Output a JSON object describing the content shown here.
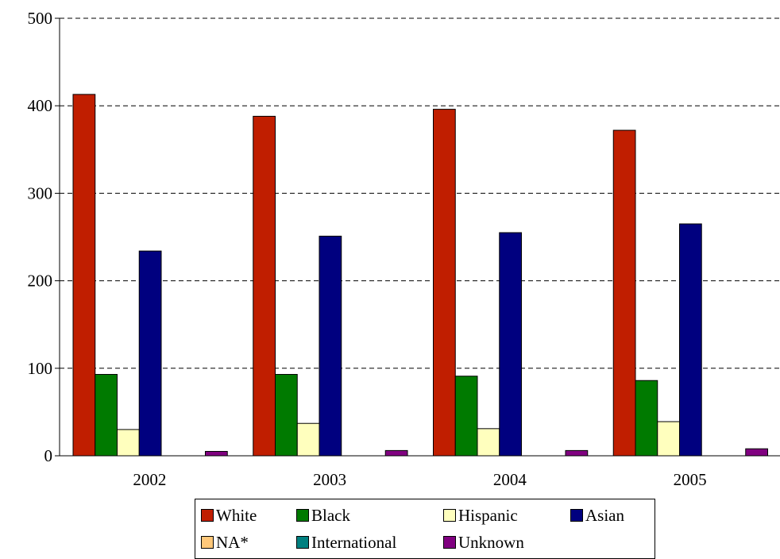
{
  "chart_data": {
    "type": "bar",
    "categories": [
      "2002",
      "2003",
      "2004",
      "2005"
    ],
    "series": [
      {
        "name": "White",
        "color": "#c01e00",
        "values": [
          413,
          388,
          396,
          372
        ]
      },
      {
        "name": "Black",
        "color": "#007a00",
        "values": [
          93,
          93,
          91,
          86
        ]
      },
      {
        "name": "Hispanic",
        "color": "#ffffbe",
        "values": [
          30,
          37,
          31,
          39
        ]
      },
      {
        "name": "Asian",
        "color": "#00007f",
        "values": [
          234,
          251,
          255,
          265
        ]
      },
      {
        "name": "NA*",
        "color": "#ffc87a",
        "values": [
          0,
          0,
          0,
          0
        ]
      },
      {
        "name": "International",
        "color": "#008080",
        "values": [
          0,
          0,
          0,
          0
        ]
      },
      {
        "name": "Unknown",
        "color": "#800080",
        "values": [
          5,
          6,
          6,
          8
        ]
      }
    ],
    "ylim": [
      0,
      500
    ],
    "yticks": [
      0,
      100,
      200,
      300,
      400,
      500
    ],
    "grid": true,
    "legend_position": "bottom"
  }
}
